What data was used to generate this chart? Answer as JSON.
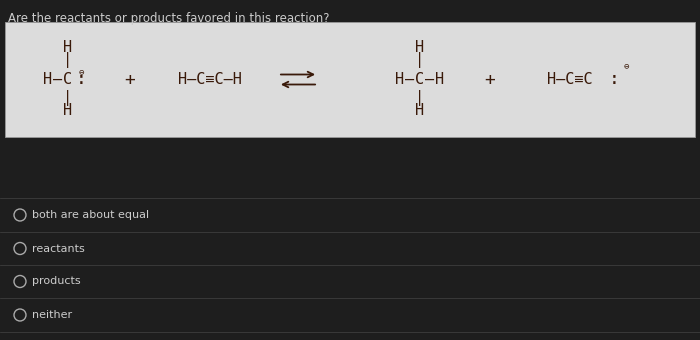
{
  "title": "Are the reactants or products favored in this reaction?",
  "title_color": "#cccccc",
  "bg_color": "#1e1e1e",
  "reaction_box_color": "#dcdcdc",
  "reaction_text_color": "#3a1a0a",
  "options": [
    "both are about equal",
    "reactants",
    "products",
    "neither"
  ],
  "option_color": "#cccccc",
  "option_separator_color": "#444444"
}
